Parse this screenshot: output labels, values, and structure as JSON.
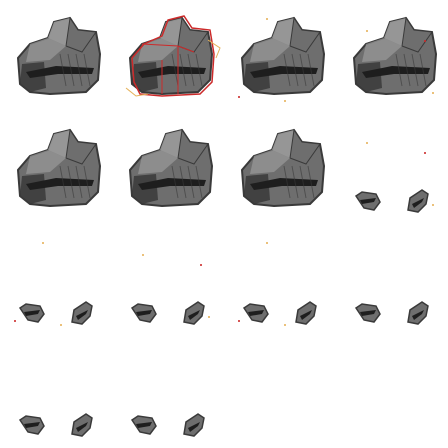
{
  "sprite_sheet": {
    "grid": {
      "columns": 4,
      "rows": 4
    },
    "frames": [
      {
        "kind": "rock-large",
        "highlight": "none"
      },
      {
        "kind": "rock-large",
        "highlight": "selected"
      },
      {
        "kind": "rock-large",
        "highlight": "sparkle"
      },
      {
        "kind": "rock-large",
        "highlight": "sparkle"
      },
      {
        "kind": "rock-large",
        "highlight": "none"
      },
      {
        "kind": "rock-large",
        "highlight": "none"
      },
      {
        "kind": "rock-large",
        "highlight": "none"
      },
      {
        "kind": "debris-small",
        "highlight": "sparkle"
      },
      {
        "kind": "debris-small",
        "highlight": "sparkle"
      },
      {
        "kind": "debris-small",
        "highlight": "sparkle"
      },
      {
        "kind": "debris-small",
        "highlight": "sparkle"
      },
      {
        "kind": "debris-small",
        "highlight": "none"
      },
      {
        "kind": "debris-small",
        "highlight": "none"
      },
      {
        "kind": "debris-small",
        "highlight": "none"
      },
      {
        "kind": "empty",
        "highlight": "none"
      },
      {
        "kind": "empty",
        "highlight": "none"
      }
    ],
    "colors": {
      "rock_dark": "#3a3a3a",
      "rock_mid": "#6e6e6e",
      "rock_light": "#9a9a9a",
      "selection": "#cc2a2a",
      "glow": "#e6b25a",
      "background": "#ffffff"
    }
  }
}
